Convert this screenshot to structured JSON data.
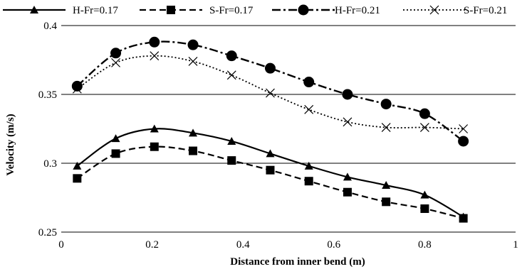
{
  "chart_data": {
    "type": "line",
    "title": "",
    "xlabel": "Distance from inner bend (m)",
    "ylabel": "Velocity (m/s)",
    "xlim": [
      0,
      1
    ],
    "ylim": [
      0.25,
      0.4
    ],
    "x_ticks": [
      "0",
      "0.2",
      "0.4",
      "0.6",
      "0.8",
      "1"
    ],
    "y_ticks": [
      "0.25",
      "0.3",
      "0.35",
      "0.4"
    ],
    "grid": "horizontal",
    "legend_position": "top",
    "series": [
      {
        "name": "H-Fr=0.17",
        "marker": "triangle",
        "line": "solid",
        "color": "#000000",
        "x": [
          0.035,
          0.12,
          0.205,
          0.29,
          0.375,
          0.46,
          0.545,
          0.63,
          0.715,
          0.8,
          0.885
        ],
        "y": [
          0.298,
          0.318,
          0.325,
          0.322,
          0.316,
          0.307,
          0.298,
          0.29,
          0.284,
          0.277,
          0.261
        ]
      },
      {
        "name": "S-Fr=0.17",
        "marker": "square",
        "line": "dashed",
        "color": "#000000",
        "x": [
          0.035,
          0.12,
          0.205,
          0.29,
          0.375,
          0.46,
          0.545,
          0.63,
          0.715,
          0.8,
          0.885
        ],
        "y": [
          0.289,
          0.307,
          0.312,
          0.309,
          0.302,
          0.295,
          0.287,
          0.279,
          0.272,
          0.267,
          0.26
        ]
      },
      {
        "name": "H-Fr=0.21",
        "marker": "circle",
        "line": "dash-dot",
        "color": "#000000",
        "x": [
          0.035,
          0.12,
          0.205,
          0.29,
          0.375,
          0.46,
          0.545,
          0.63,
          0.715,
          0.8,
          0.885
        ],
        "y": [
          0.356,
          0.38,
          0.388,
          0.386,
          0.378,
          0.369,
          0.359,
          0.35,
          0.343,
          0.336,
          0.316
        ]
      },
      {
        "name": "S-Fr=0.21",
        "marker": "cross",
        "line": "dotted",
        "color": "#000000",
        "x": [
          0.035,
          0.12,
          0.205,
          0.29,
          0.375,
          0.46,
          0.545,
          0.63,
          0.715,
          0.8,
          0.885
        ],
        "y": [
          0.354,
          0.373,
          0.378,
          0.374,
          0.364,
          0.351,
          0.339,
          0.33,
          0.326,
          0.326,
          0.325
        ]
      }
    ]
  }
}
